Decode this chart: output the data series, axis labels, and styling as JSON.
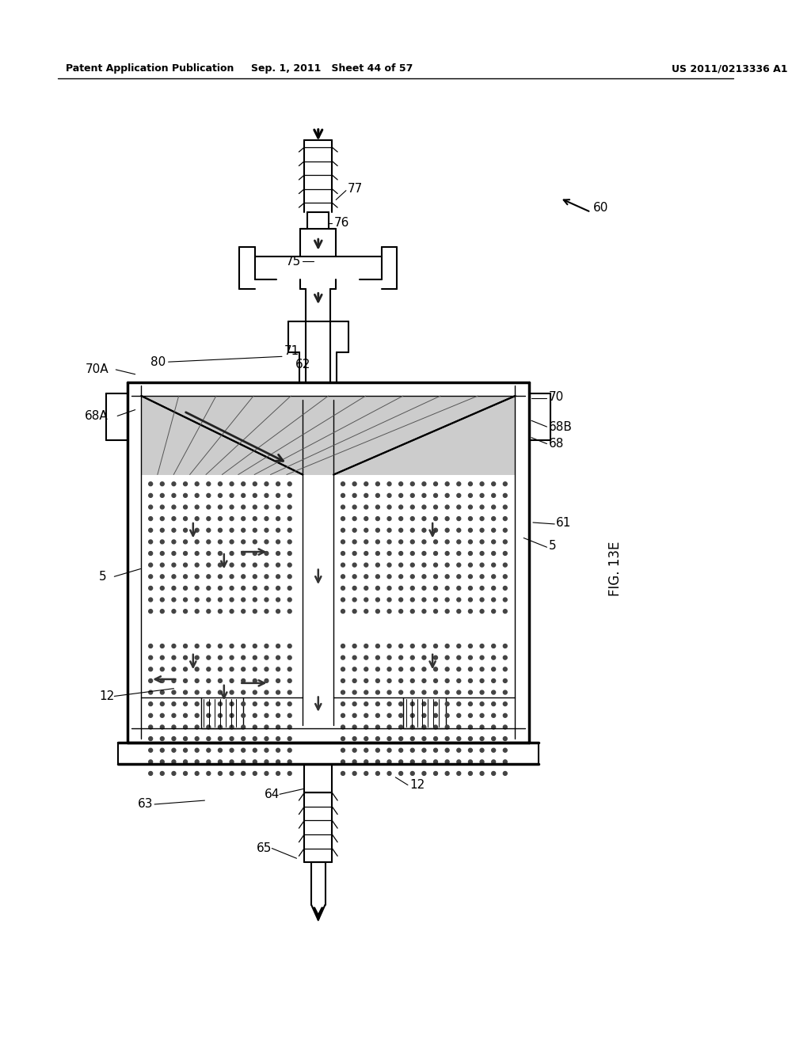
{
  "header_left": "Patent Application Publication",
  "header_mid": "Sep. 1, 2011   Sheet 44 of 57",
  "header_right": "US 2011/0213336 A1",
  "figure_label": "FIG. 13E",
  "bg_color": "#ffffff",
  "line_color": "#000000"
}
